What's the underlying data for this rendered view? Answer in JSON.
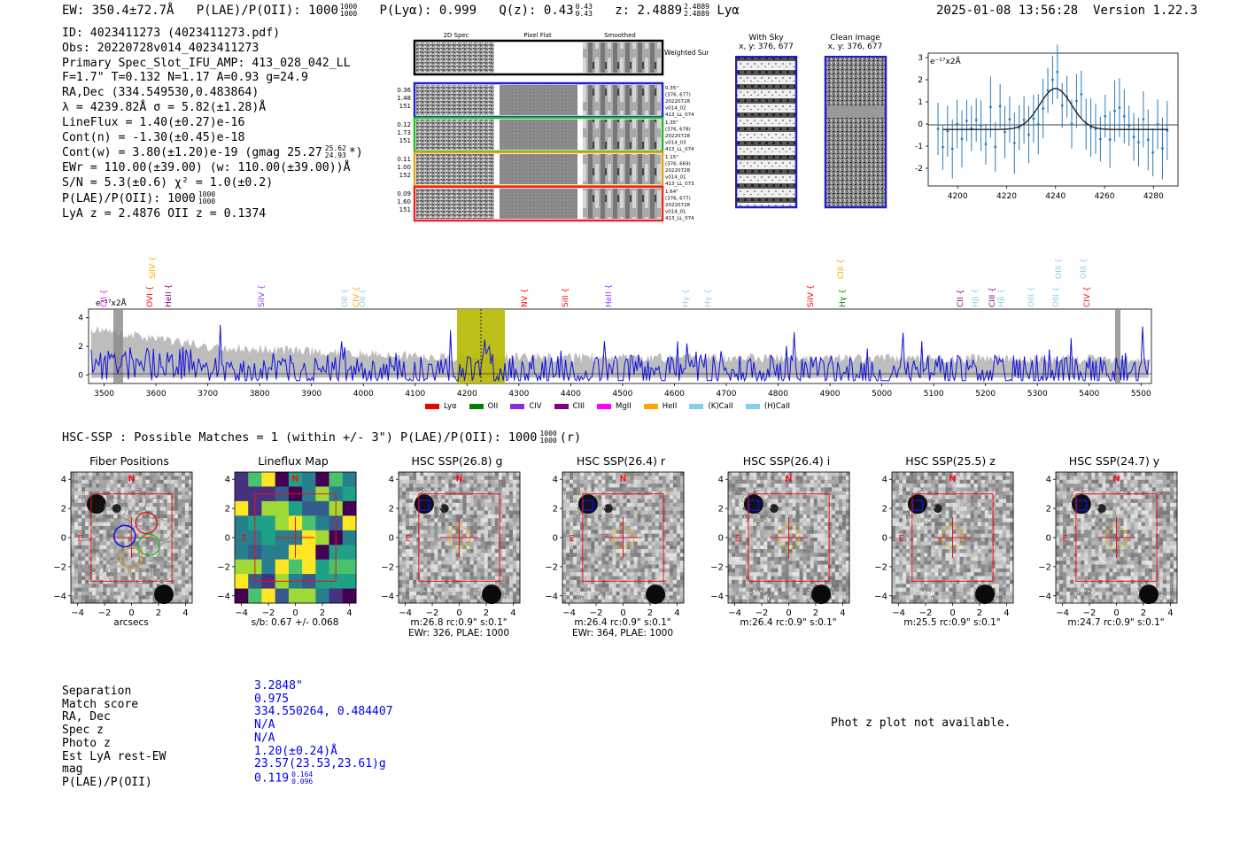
{
  "header": {
    "ew": "EW: 350.4±72.7Å",
    "plae_label": "P(LAE)/P(OII): 1000",
    "plae_sup": "1000",
    "plae_sub": "1000",
    "plya": "P(Lyα): 0.999",
    "qz_label": "Q(z): 0.43",
    "qz_sup": "0.43",
    "qz_sub": "0.43",
    "z_label": "z: 2.4889",
    "z_sup": "2.4889",
    "z_sub": "2.4889",
    "z_line": "Lyα",
    "timestamp": "2025-01-08 13:56:28",
    "version": "Version 1.22.3"
  },
  "info": {
    "id": "ID: 4023411273 (4023411273.pdf)",
    "obs": "Obs: 20220728v014_4023411273",
    "primary": "Primary Spec_Slot_IFU_AMP: 413_028_042_LL",
    "fwhm": "F=1.7\"  T=0.132  N=1.17  A=0.93  g=24.9",
    "radec": "RA,Dec (334.549530,0.483864)",
    "lambda": "λ = 4239.82Å   σ = 5.82(±1.28)Å",
    "lineflux": "LineFlux = 1.40(±0.27)e-16",
    "contn": "Cont(n) = -1.30(±0.45)e-18",
    "contw": "Cont(w) = 3.80(±1.20)e-19 (gmag 25.27",
    "contw_sup": "25.62",
    "contw_sub": "24.93",
    "contw_end": "*)",
    "ewr": "EWr = 110.00(±39.00) (w: 110.00(±39.00))Å",
    "sn": "S/N = 5.3(±0.6)  χ² = 1.0(±0.2)",
    "plae": "P(LAE)/P(OII): 1000",
    "plae_sup": "1000",
    "plae_sub": "1000",
    "lyaz": "LyA z = 2.4876  OII z = 0.1374"
  },
  "cutouts": {
    "col_titles": [
      "2D Spec",
      "Pixel Flat",
      "Smoothed"
    ],
    "weighted_sum": "Weighted Sum",
    "rows": [
      {
        "left": [
          "0.36",
          "1.48",
          "151"
        ],
        "right": [
          "0.35\"",
          "(376, 677)",
          "20220728",
          "v014_02",
          "413_LL_074"
        ],
        "color": "#1f1fcc"
      },
      {
        "left": [
          "0.12",
          "1.73",
          "151"
        ],
        "right": [
          "1.35\"",
          "(376, 678)",
          "20220728",
          "v014_03",
          "413_LL_074"
        ],
        "color": "#22bb22"
      },
      {
        "left": [
          "0.11",
          "1.00",
          "152"
        ],
        "right": [
          "1.15\"",
          "(376, 669)",
          "20220728",
          "v014_01",
          "413_LL_073"
        ],
        "color": "#e0a020"
      },
      {
        "left": [
          "0.09",
          "1.60",
          "151"
        ],
        "right": [
          "1.64\"",
          "(376, 677)",
          "20220728",
          "v014_01",
          "413_LL_074"
        ],
        "color": "#ee2222"
      }
    ]
  },
  "sky": {
    "with_sky_title": "With Sky",
    "with_sky_coords": "x, y: 376, 677",
    "clean_title": "Clean Image",
    "clean_coords": "x, y: 376, 677"
  },
  "zoom_chart": {
    "unit_label": "e⁻¹⁷x2Å",
    "x_ticks": [
      4200,
      4220,
      4240,
      4260,
      4280
    ],
    "y_ticks": [
      3,
      2,
      1,
      0,
      -1,
      -2
    ]
  },
  "spectrum": {
    "unit_label": "e⁻¹⁷x2Å",
    "x_ticks": [
      3500,
      3600,
      3700,
      3800,
      3900,
      4000,
      4100,
      4200,
      4300,
      4400,
      4500,
      4600,
      4700,
      4800,
      4900,
      5000,
      5100,
      5200,
      5300,
      5400,
      5500
    ],
    "y_ticks": [
      4,
      2,
      0
    ],
    "line_labels": [
      {
        "text": "CII",
        "color": "#ff00ff"
      },
      {
        "text": "SiIV",
        "color": "#ffa500"
      },
      {
        "text": "OVI",
        "color": "#ff0000"
      },
      {
        "text": "HeII",
        "color": "#800080"
      },
      {
        "text": "SiIV",
        "color": "#9933ff"
      },
      {
        "text": "OII",
        "color": "#87ceeb"
      },
      {
        "text": "CIV",
        "color": "#ffa500"
      },
      {
        "text": "OII",
        "color": "#87ceeb"
      },
      {
        "text": "NV",
        "color": "#ff0000"
      },
      {
        "text": "SiII",
        "color": "#ff0000"
      },
      {
        "text": "HeII",
        "color": "#9933ff"
      },
      {
        "text": "Hγ",
        "color": "#87ceeb"
      },
      {
        "text": "Hγ",
        "color": "#87ceeb"
      },
      {
        "text": "SiIV",
        "color": "#ff0000"
      },
      {
        "text": "CIII",
        "color": "#ffa500"
      },
      {
        "text": "Hγ",
        "color": "#008000"
      },
      {
        "text": "CII",
        "color": "#800080"
      },
      {
        "text": "Hβ",
        "color": "#87ceeb"
      },
      {
        "text": "CIII",
        "color": "#800080"
      },
      {
        "text": "Hβ",
        "color": "#87ceeb"
      },
      {
        "text": "OIII",
        "color": "#87ceeb"
      },
      {
        "text": "OIII",
        "color": "#87ceeb"
      },
      {
        "text": "OIII",
        "color": "#87ceeb"
      },
      {
        "text": "OIII",
        "color": "#87ceeb"
      },
      {
        "text": "CIV",
        "color": "#ff0000"
      }
    ],
    "legend": [
      {
        "label": "Lyα",
        "color": "#ee0000"
      },
      {
        "label": "OII",
        "color": "#008000"
      },
      {
        "label": "CIV",
        "color": "#8a2be2"
      },
      {
        "label": "CIII",
        "color": "#800080"
      },
      {
        "label": "MgII",
        "color": "#ff00ff"
      },
      {
        "label": "HeII",
        "color": "#ffa500"
      },
      {
        "label": "(K)CaII",
        "color": "#87ceeb"
      },
      {
        "label": "(H)CaII",
        "color": "#87ceeb"
      }
    ]
  },
  "hsc": {
    "heading": "HSC-SSP : Possible Matches = 1 (within +/- 3\")  P(LAE)/P(OII): 1000",
    "heading_sup": "1000",
    "heading_sub": "1000",
    "heading_end": "(r)",
    "panels": [
      {
        "title": "Fiber Positions",
        "cap1": "arcsecs",
        "cap2": ""
      },
      {
        "title": "Lineflux Map",
        "cap1": "s/b: 0.67 +/- 0.068",
        "cap2": ""
      },
      {
        "title": "HSC SSP(26.8) g",
        "cap1": "m:26.8 rc:0.9\"  s:0.1\"",
        "cap2": "EWr: 326, PLAE: 1000"
      },
      {
        "title": "HSC SSP(26.4) r",
        "cap1": "m:26.4 rc:0.9\"  s:0.1\"",
        "cap2": "EWr: 364, PLAE: 1000"
      },
      {
        "title": "HSC SSP(26.4) i",
        "cap1": "m:26.4 rc:0.9\"  s:0.1\"",
        "cap2": ""
      },
      {
        "title": "HSC SSP(25.5) z",
        "cap1": "m:25.5 rc:0.9\"  s:0.1\"",
        "cap2": ""
      },
      {
        "title": "HSC SSP(24.7) y",
        "cap1": "m:24.7 rc:0.9\"  s:0.1\"",
        "cap2": ""
      }
    ],
    "axis_ticks": [
      "4",
      "2",
      "0",
      "−2",
      "−4"
    ],
    "x_ticks": [
      "−4",
      "−2",
      "0",
      "2",
      "4"
    ],
    "north": "N",
    "east": "E"
  },
  "match": {
    "keys": [
      "Separation",
      "Match score",
      "RA, Dec",
      "Spec z",
      "Photo z",
      "Est LyA rest-EW",
      "mag",
      "P(LAE)/P(OII)"
    ],
    "values": [
      "3.2848\"",
      "0.975",
      "334.550264, 0.484407",
      "N/A",
      "N/A",
      "1.20(±0.24)Å",
      "23.57(23.53,23.61)g",
      "0.119"
    ],
    "plae_sup": "0.164",
    "plae_sub": "0.096"
  },
  "photz_msg": "Phot z plot not available."
}
